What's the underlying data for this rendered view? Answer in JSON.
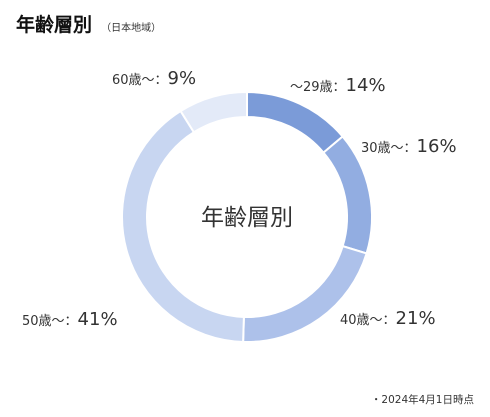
{
  "header": {
    "title": "年齢層別",
    "subtitle": "（日本地域）"
  },
  "footnote": "・2024年4月1日時点",
  "chart_data": {
    "type": "pie",
    "center_label": "年齢層別",
    "categories": [
      "〜29歳",
      "30歳〜",
      "40歳〜",
      "50歳〜",
      "60歳〜"
    ],
    "values": [
      14,
      16,
      21,
      41,
      9
    ],
    "unit": "%",
    "colors": [
      "#7b9bd8",
      "#92ade1",
      "#adc1ea",
      "#c8d6f1",
      "#e3eaf8"
    ],
    "labels": [
      {
        "name": "〜29歳：",
        "value": "14%"
      },
      {
        "name": "30歳〜：",
        "value": "16%"
      },
      {
        "name": "40歳〜：",
        "value": "21%"
      },
      {
        "name": "50歳〜：",
        "value": "41%"
      },
      {
        "name": "60歳〜：",
        "value": "9%"
      }
    ]
  }
}
